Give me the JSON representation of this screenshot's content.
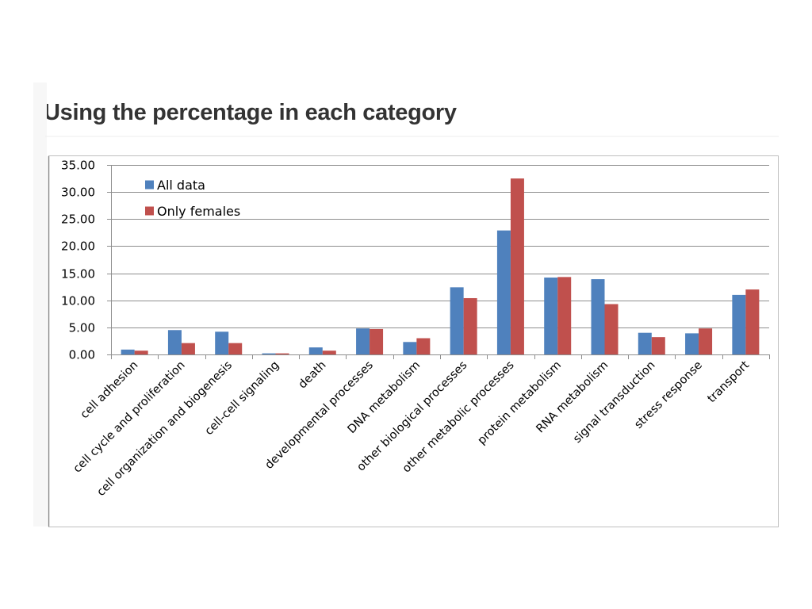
{
  "slide": {
    "title": "Using the percentage in each category"
  },
  "chart_data": {
    "type": "bar",
    "title": "",
    "xlabel": "",
    "ylabel": "",
    "ylim": [
      0,
      35
    ],
    "yticks": [
      "0.00",
      "5.00",
      "10.00",
      "15.00",
      "20.00",
      "25.00",
      "30.00",
      "35.00"
    ],
    "grid": true,
    "legend_position": "top-left",
    "categories": [
      "cell adhesion",
      "cell cycle and proliferation",
      "cell organization and biogenesis",
      "cell-cell signaling",
      "death",
      "developmental processes",
      "DNA metabolism",
      "other biological processes",
      "other metabolic processes",
      "protein metabolism",
      "RNA metabolism",
      "signal transduction",
      "stress response",
      "transport"
    ],
    "series": [
      {
        "name": "All data",
        "color": "#4F81BD",
        "values": [
          0.9,
          4.5,
          4.2,
          0.2,
          1.3,
          4.8,
          2.3,
          12.4,
          22.9,
          14.2,
          13.9,
          4.0,
          3.9,
          11.0
        ]
      },
      {
        "name": "Only females",
        "color": "#C0504D",
        "values": [
          0.7,
          2.1,
          2.1,
          0.2,
          0.7,
          4.7,
          3.0,
          10.4,
          32.5,
          14.3,
          9.3,
          3.2,
          4.8,
          12.0
        ]
      }
    ]
  }
}
